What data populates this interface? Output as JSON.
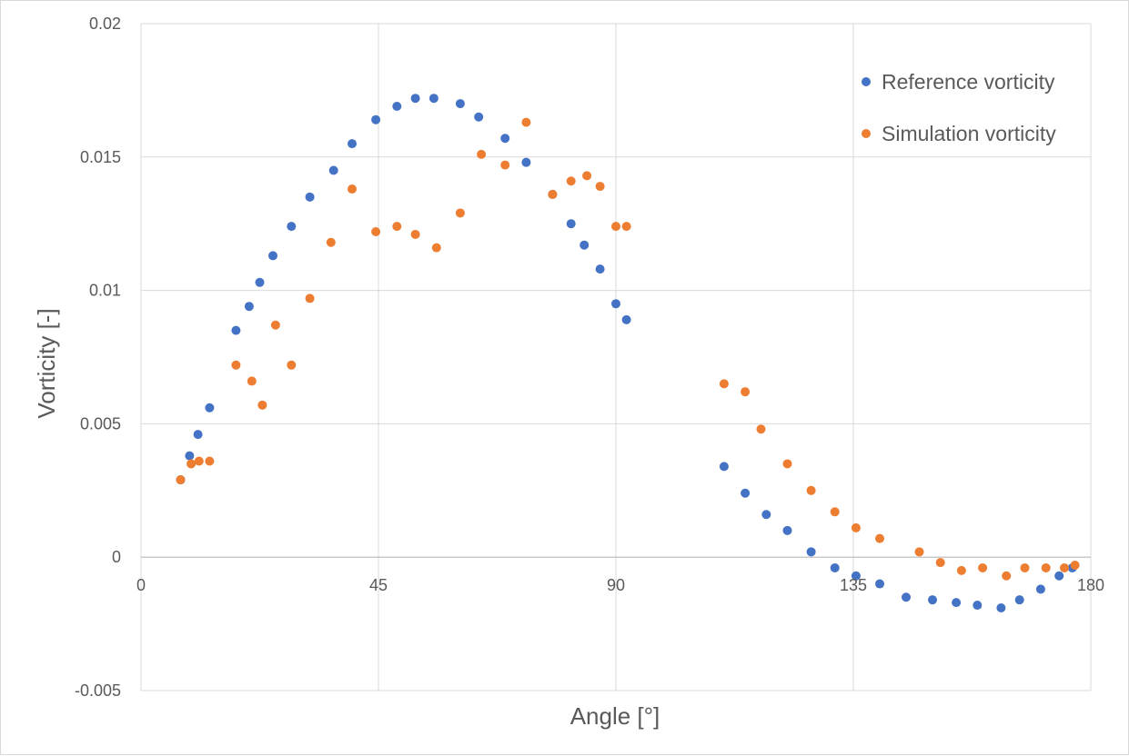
{
  "chart_data": {
    "type": "scatter",
    "title": "",
    "xlabel": "Angle [°]",
    "ylabel": "Vorticity [-]",
    "xlim": [
      0,
      180
    ],
    "ylim": [
      -0.005,
      0.02
    ],
    "x_ticks": [
      "0",
      "45",
      "90",
      "135",
      "180"
    ],
    "y_ticks": [
      "-0.005",
      "0",
      "0.005",
      "0.01",
      "0.015",
      "0.02"
    ],
    "grid": true,
    "legend_position": "top-right",
    "series": [
      {
        "name": "Reference vorticity",
        "color": "#4472C4",
        "trendline": "polynomial",
        "points": [
          [
            7.5,
            0.0029
          ],
          [
            9.2,
            0.0038
          ],
          [
            10.8,
            0.0046
          ],
          [
            13.0,
            0.0056
          ],
          [
            18.0,
            0.0085
          ],
          [
            20.5,
            0.0094
          ],
          [
            22.5,
            0.0103
          ],
          [
            25.0,
            0.0113
          ],
          [
            28.5,
            0.0124
          ],
          [
            32.0,
            0.0135
          ],
          [
            36.5,
            0.0145
          ],
          [
            40.0,
            0.0155
          ],
          [
            44.5,
            0.0164
          ],
          [
            48.5,
            0.0169
          ],
          [
            52.0,
            0.0172
          ],
          [
            55.5,
            0.0172
          ],
          [
            60.5,
            0.017
          ],
          [
            64.0,
            0.0165
          ],
          [
            69.0,
            0.0157
          ],
          [
            73.0,
            0.0148
          ],
          [
            78.0,
            0.0136
          ],
          [
            81.5,
            0.0125
          ],
          [
            84.0,
            0.0117
          ],
          [
            87.0,
            0.0108
          ],
          [
            90.0,
            0.0095
          ],
          [
            92.0,
            0.0089
          ],
          [
            110.5,
            0.0034
          ],
          [
            114.5,
            0.0024
          ],
          [
            118.5,
            0.0016
          ],
          [
            122.5,
            0.001
          ],
          [
            127.0,
            0.0002
          ],
          [
            131.5,
            -0.0004
          ],
          [
            135.5,
            -0.0007
          ],
          [
            140.0,
            -0.001
          ],
          [
            145.0,
            -0.0015
          ],
          [
            150.0,
            -0.0016
          ],
          [
            154.5,
            -0.0017
          ],
          [
            158.5,
            -0.0018
          ],
          [
            163.0,
            -0.0019
          ],
          [
            166.5,
            -0.0016
          ],
          [
            170.5,
            -0.0012
          ],
          [
            174.0,
            -0.0007
          ],
          [
            176.5,
            -0.0004
          ]
        ]
      },
      {
        "name": "Simulation vorticity",
        "color": "#ED7D31",
        "trendline": "polynomial",
        "points": [
          [
            7.5,
            0.0029
          ],
          [
            9.5,
            0.0035
          ],
          [
            11.0,
            0.0036
          ],
          [
            13.0,
            0.0036
          ],
          [
            18.0,
            0.0072
          ],
          [
            21.0,
            0.0066
          ],
          [
            23.0,
            0.0057
          ],
          [
            25.5,
            0.0087
          ],
          [
            28.5,
            0.0072
          ],
          [
            32.0,
            0.0097
          ],
          [
            36.0,
            0.0118
          ],
          [
            40.0,
            0.0138
          ],
          [
            44.5,
            0.0122
          ],
          [
            48.5,
            0.0124
          ],
          [
            52.0,
            0.0121
          ],
          [
            56.0,
            0.0116
          ],
          [
            60.5,
            0.0129
          ],
          [
            64.5,
            0.0151
          ],
          [
            69.0,
            0.0147
          ],
          [
            73.0,
            0.0163
          ],
          [
            78.0,
            0.0136
          ],
          [
            81.5,
            0.0141
          ],
          [
            84.5,
            0.0143
          ],
          [
            87.0,
            0.0139
          ],
          [
            90.0,
            0.0124
          ],
          [
            92.0,
            0.0124
          ],
          [
            110.5,
            0.0065
          ],
          [
            114.5,
            0.0062
          ],
          [
            117.5,
            0.0048
          ],
          [
            122.5,
            0.0035
          ],
          [
            127.0,
            0.0025
          ],
          [
            131.5,
            0.0017
          ],
          [
            135.5,
            0.0011
          ],
          [
            140.0,
            0.0007
          ],
          [
            147.5,
            0.0002
          ],
          [
            151.5,
            -0.0002
          ],
          [
            155.5,
            -0.0005
          ],
          [
            159.5,
            -0.0004
          ],
          [
            164.0,
            -0.0007
          ],
          [
            167.5,
            -0.0004
          ],
          [
            171.5,
            -0.0004
          ],
          [
            175.0,
            -0.0004
          ],
          [
            177.0,
            -0.0003
          ]
        ]
      }
    ]
  }
}
